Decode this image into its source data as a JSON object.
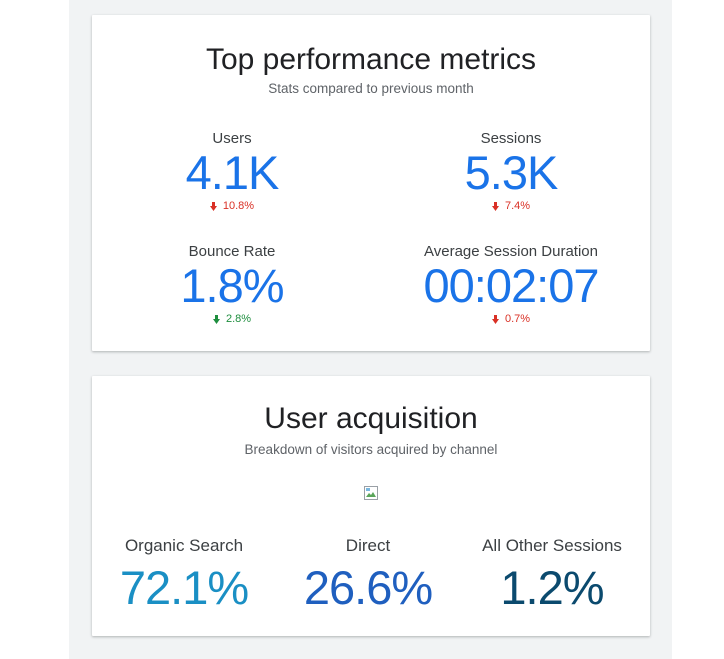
{
  "colors": {
    "metric_blue": "#1a73e8",
    "delta_down": "#d93025",
    "delta_up": "#1e8e3e",
    "organic": "#1a8fc4",
    "direct": "#1f5fbf",
    "other": "#0b4a6e"
  },
  "performance": {
    "title": "Top performance metrics",
    "subtitle": "Stats compared to previous month",
    "metrics": [
      {
        "label": "Users",
        "value": "4.1K",
        "delta": "10.8%",
        "direction": "down"
      },
      {
        "label": "Sessions",
        "value": "5.3K",
        "delta": "7.4%",
        "direction": "down"
      },
      {
        "label": "Bounce Rate",
        "value": "1.8%",
        "delta": "2.8%",
        "direction": "down-good"
      },
      {
        "label": "Average Session Duration",
        "value": "00:02:07",
        "delta": "0.7%",
        "direction": "down"
      }
    ]
  },
  "acquisition": {
    "title": "User acquisition",
    "subtitle": "Breakdown of visitors acquired by channel",
    "image_icon": "broken-image-icon",
    "channels": [
      {
        "label": "Organic Search",
        "value": "72.1%"
      },
      {
        "label": "Direct",
        "value": "26.6%"
      },
      {
        "label": "All Other Sessions",
        "value": "1.2%"
      }
    ]
  }
}
